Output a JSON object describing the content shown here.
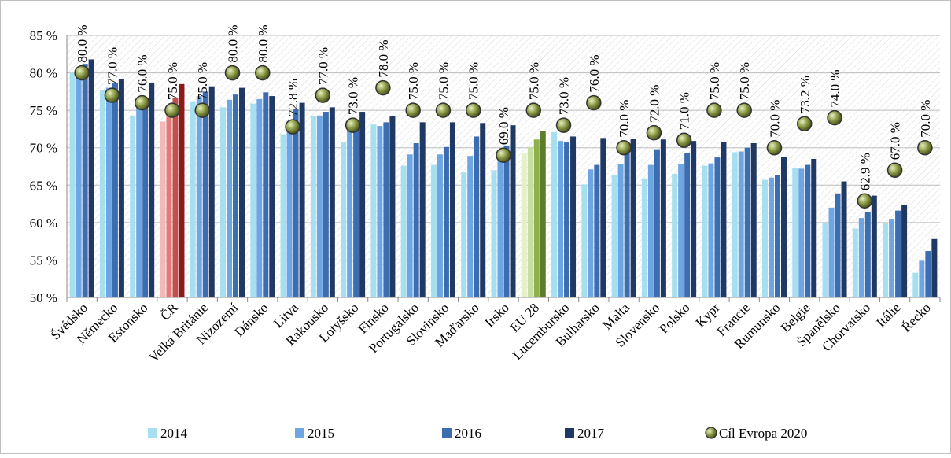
{
  "chart_data": {
    "type": "bar",
    "categories": [
      "Švédsko",
      "Německo",
      "Estonsko",
      "ČR",
      "Velká Británie",
      "Nizozemí",
      "Dánsko",
      "Litva",
      "Rakousko",
      "Lotyšsko",
      "Finsko",
      "Portugalsko",
      "Slovinsko",
      "Maďarsko",
      "Irsko",
      "EU 28",
      "Lucembursko",
      "Bulharsko",
      "Malta",
      "Slovensko",
      "Polsko",
      "Kypr",
      "Francie",
      "Rumunsko",
      "Belgie",
      "Španělsko",
      "Chorvatsko",
      "Itálie",
      "Řecko"
    ],
    "series": [
      {
        "name": "2014",
        "color": "#a6dff0",
        "values": [
          80.0,
          77.7,
          74.3,
          73.5,
          76.2,
          75.4,
          75.9,
          71.8,
          74.2,
          70.7,
          73.1,
          67.6,
          67.7,
          66.7,
          67.0,
          69.2,
          72.1,
          65.1,
          66.4,
          65.9,
          66.5,
          67.6,
          69.4,
          65.7,
          67.3,
          59.9,
          59.2,
          59.9,
          53.3
        ]
      },
      {
        "name": "2015",
        "color": "#6ea6e4",
        "values": [
          80.5,
          78.0,
          76.5,
          74.8,
          76.9,
          76.4,
          76.5,
          73.3,
          74.3,
          72.5,
          72.9,
          69.1,
          69.1,
          68.9,
          68.7,
          70.1,
          70.9,
          67.1,
          67.8,
          67.7,
          67.8,
          67.9,
          69.5,
          66.0,
          67.2,
          62.0,
          60.6,
          60.5,
          54.9
        ]
      },
      {
        "name": "2016",
        "color": "#3c6db0",
        "values": [
          81.2,
          78.7,
          76.6,
          76.7,
          77.5,
          77.1,
          77.4,
          75.2,
          74.8,
          73.2,
          73.4,
          70.6,
          70.1,
          71.5,
          70.3,
          71.1,
          70.7,
          67.7,
          69.6,
          69.8,
          69.3,
          68.7,
          70.0,
          66.3,
          67.7,
          63.9,
          61.4,
          61.6,
          56.2
        ]
      },
      {
        "name": "2017",
        "color": "#1f3864",
        "values": [
          81.8,
          79.2,
          78.7,
          78.5,
          78.2,
          78.0,
          76.9,
          76.0,
          75.4,
          74.8,
          74.2,
          73.4,
          73.4,
          73.3,
          73.0,
          72.2,
          71.5,
          71.3,
          71.2,
          71.1,
          70.9,
          70.8,
          70.6,
          68.8,
          68.5,
          65.5,
          63.6,
          62.3,
          57.8
        ]
      },
      {
        "name": "Cíl Evropa 2020",
        "type": "marker",
        "color": "#6b7a2e",
        "values": [
          80.0,
          77.0,
          76.0,
          75.0,
          75.0,
          80.0,
          80.0,
          72.8,
          77.0,
          73.0,
          78.0,
          75.0,
          75.0,
          75.0,
          69.0,
          75.0,
          73.0,
          76.0,
          70.0,
          72.0,
          71.0,
          75.0,
          75.0,
          70.0,
          73.2,
          74.0,
          62.9,
          67.0,
          70.0
        ],
        "value_labels": [
          "80.0 %",
          "77.0 %",
          "76.0 %",
          "75.0 %",
          "75.0 %",
          "80.0 %",
          "80.0 %",
          "72.8 %",
          "77.0 %",
          "73.0 %",
          "78.0 %",
          "75.0 %",
          "75.0 %",
          "75.0 %",
          "69.0 %",
          "75.0 %",
          "73.0 %",
          "76.0 %",
          "70.0 %",
          "72.0 %",
          "71.0 %",
          "75.0 %",
          "75.0 %",
          "70.0 %",
          "73.2 %",
          "74.0 %",
          "62.9 %",
          "67.0 %",
          "70.0 %"
        ]
      }
    ],
    "highlights": [
      {
        "category": "ČR",
        "colors": [
          "#f4b8b8",
          "#e27a7a",
          "#c0504d",
          "#8b1a1a"
        ]
      },
      {
        "category": "EU 28",
        "colors": [
          "#e4f0c8",
          "#c7e0a2",
          "#8fb04a",
          "#5e7d2a"
        ]
      }
    ],
    "ylim": [
      50,
      85
    ],
    "yticks": [
      {
        "value": 50,
        "label": "50 %"
      },
      {
        "value": 55,
        "label": "55 %"
      },
      {
        "value": 60,
        "label": "60 %"
      },
      {
        "value": 65,
        "label": "65 %"
      },
      {
        "value": 70,
        "label": "70 %"
      },
      {
        "value": 75,
        "label": "75 %"
      },
      {
        "value": 80,
        "label": "80 %"
      },
      {
        "value": 85,
        "label": "85 %"
      }
    ],
    "grid": true,
    "legend": "bottom"
  }
}
